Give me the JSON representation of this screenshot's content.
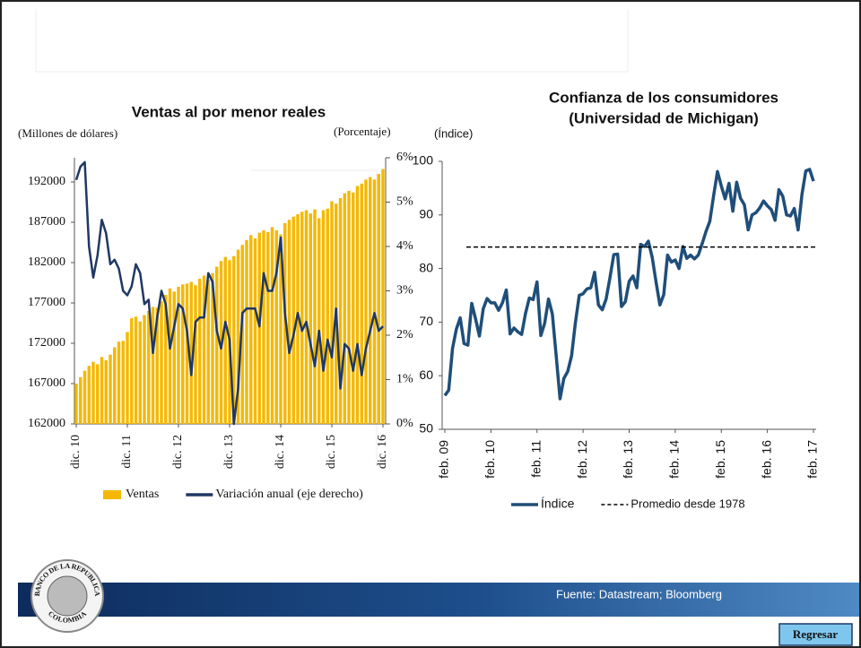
{
  "chart_data": [
    {
      "type": "bar",
      "title": "Ventas al por menor reales",
      "y_label": "(Millones de dólares)",
      "y2_label": "(Porcentaje)",
      "categories": [
        "dic. 10",
        null,
        null,
        null,
        null,
        null,
        null,
        null,
        null,
        null,
        null,
        null,
        "dic. 11",
        null,
        null,
        null,
        null,
        null,
        null,
        null,
        null,
        null,
        null,
        null,
        "dic. 12",
        null,
        null,
        null,
        null,
        null,
        null,
        null,
        null,
        null,
        null,
        null,
        "dic. 13",
        null,
        null,
        null,
        null,
        null,
        null,
        null,
        null,
        null,
        null,
        null,
        "dic. 14",
        null,
        null,
        null,
        null,
        null,
        null,
        null,
        null,
        null,
        null,
        null,
        "dic. 15",
        null,
        null,
        null,
        null,
        null,
        null,
        null,
        null,
        null,
        null,
        null,
        "dic. 16"
      ],
      "series": [
        {
          "name": "Ventas",
          "type": "bar",
          "color": "#f5b800",
          "values": [
            167000,
            167800,
            168600,
            169200,
            169700,
            169400,
            170300,
            169900,
            170600,
            171500,
            172200,
            172300,
            173400,
            175100,
            175300,
            174700,
            175500,
            176000,
            176500,
            176400,
            177200,
            178000,
            178800,
            178400,
            179000,
            179300,
            179400,
            179600,
            179200,
            180000,
            180400,
            179900,
            180700,
            181500,
            182200,
            182700,
            182300,
            182800,
            183600,
            184200,
            184800,
            185400,
            185000,
            185700,
            186000,
            185800,
            186400,
            186000,
            185500,
            186900,
            187300,
            187700,
            188000,
            188300,
            188500,
            188100,
            188600,
            187500,
            188500,
            188700,
            189600,
            189300,
            190000,
            190600,
            190900,
            190700,
            191500,
            191800,
            192300,
            192600,
            192300,
            193000,
            193600
          ]
        },
        {
          "name": "Variación anual (eje derecho)",
          "type": "line",
          "axis": "y2",
          "color": "#1f3864",
          "values": [
            5.5,
            5.8,
            5.9,
            4.0,
            3.3,
            3.8,
            4.6,
            4.3,
            3.6,
            3.7,
            3.5,
            3.0,
            2.9,
            3.1,
            3.6,
            3.4,
            2.7,
            2.8,
            1.6,
            2.4,
            3.0,
            2.7,
            1.7,
            2.2,
            2.7,
            2.6,
            2.1,
            1.1,
            2.3,
            2.4,
            2.4,
            3.4,
            3.2,
            2.1,
            1.7,
            2.3,
            1.9,
            0.0,
            0.8,
            2.5,
            2.6,
            2.6,
            2.6,
            2.2,
            3.4,
            3.0,
            3.0,
            3.4,
            4.2,
            2.5,
            1.6,
            2.0,
            2.5,
            2.1,
            2.3,
            1.8,
            1.3,
            2.1,
            1.2,
            1.9,
            1.5,
            2.6,
            0.8,
            1.8,
            1.7,
            1.2,
            1.8,
            1.1,
            1.7,
            2.1,
            2.5,
            2.1,
            2.2
          ]
        }
      ],
      "ylim": [
        162000,
        195000
      ],
      "yticks": [
        162000,
        167000,
        172000,
        177000,
        182000,
        187000,
        192000
      ],
      "y2lim": [
        0,
        6
      ],
      "y2ticks": [
        {
          "value": 0,
          "label": "0%"
        },
        {
          "value": 1,
          "label": "1%"
        },
        {
          "value": 2,
          "label": "2%"
        },
        {
          "value": 3,
          "label": "3%"
        },
        {
          "value": 4,
          "label": "4%"
        },
        {
          "value": 5,
          "label": "5%"
        },
        {
          "value": 6,
          "label": "6%"
        }
      ],
      "legend": "bottom"
    },
    {
      "type": "line",
      "title": [
        "Confianza de los consumidores",
        "(Universidad de Michigan)"
      ],
      "y_label": "(Índice)",
      "categories": [
        "feb. 09",
        null,
        null,
        null,
        null,
        null,
        null,
        null,
        null,
        null,
        null,
        null,
        "feb. 10",
        null,
        null,
        null,
        null,
        null,
        null,
        null,
        null,
        null,
        null,
        null,
        "feb. 11",
        null,
        null,
        null,
        null,
        null,
        null,
        null,
        null,
        null,
        null,
        null,
        "feb. 12",
        null,
        null,
        null,
        null,
        null,
        null,
        null,
        null,
        null,
        null,
        null,
        "feb. 13",
        null,
        null,
        null,
        null,
        null,
        null,
        null,
        null,
        null,
        null,
        null,
        "feb. 14",
        null,
        null,
        null,
        null,
        null,
        null,
        null,
        null,
        null,
        null,
        null,
        "feb. 15",
        null,
        null,
        null,
        null,
        null,
        null,
        null,
        null,
        null,
        null,
        null,
        "feb. 16",
        null,
        null,
        null,
        null,
        null,
        null,
        null,
        null,
        null,
        null,
        null,
        "feb. 17"
      ],
      "series": [
        {
          "name": "Índice",
          "color": "#1f4e79",
          "values": [
            56.3,
            57.3,
            65.1,
            68.7,
            70.8,
            66.0,
            65.7,
            73.5,
            70.6,
            67.4,
            72.5,
            74.4,
            73.6,
            73.6,
            72.2,
            73.6,
            76.0,
            67.8,
            68.9,
            68.2,
            67.7,
            71.6,
            74.5,
            74.2,
            77.5,
            67.5,
            69.8,
            74.3,
            71.5,
            63.7,
            55.7,
            59.5,
            60.8,
            63.7,
            69.9,
            75.0,
            75.3,
            76.2,
            76.4,
            79.3,
            73.2,
            72.3,
            74.3,
            78.3,
            82.6,
            82.7,
            72.9,
            73.8,
            77.6,
            78.6,
            76.4,
            84.5,
            84.1,
            85.1,
            82.1,
            77.5,
            73.2,
            75.1,
            82.5,
            81.2,
            81.6,
            80.0,
            84.1,
            81.9,
            82.5,
            81.8,
            82.5,
            84.6,
            86.9,
            88.8,
            93.6,
            98.1,
            95.4,
            93.0,
            95.9,
            90.7,
            96.1,
            93.1,
            91.9,
            87.2,
            90.0,
            90.4,
            91.3,
            92.6,
            91.7,
            91.0,
            89.0,
            94.7,
            93.5,
            90.0,
            89.8,
            91.2,
            87.2,
            93.8,
            98.2,
            98.5,
            96.3
          ]
        }
      ],
      "reference_line": {
        "name": "Promedio desde 1978",
        "value": 84,
        "color": "#000000"
      },
      "ylim": [
        50,
        100
      ],
      "yticks": [
        50,
        60,
        70,
        80,
        90,
        100
      ],
      "legend": "bottom"
    }
  ],
  "footer": {
    "source": "Fuente: Datastream; Bloomberg",
    "button": "Regresar",
    "logo_top": "BANCO DE LA REPUBLICA",
    "logo_bottom": "COLOMBIA"
  }
}
